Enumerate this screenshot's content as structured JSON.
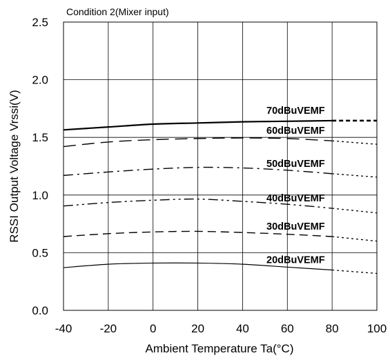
{
  "chart_data": {
    "type": "line",
    "subtitle": "Condition 2(Mixer input)",
    "xlabel": "Ambient Temperature Ta(°C)",
    "ylabel": "RSSI Output Voltage Vrssi(V)",
    "xlim": [
      -40,
      100
    ],
    "ylim": [
      0,
      2.5
    ],
    "xticks": [
      -40,
      -20,
      0,
      20,
      40,
      60,
      80,
      100
    ],
    "yticks": [
      0.0,
      0.5,
      1.0,
      1.5,
      2.0,
      2.5
    ],
    "xtick_labels": [
      "-40",
      "-20",
      "0",
      "20",
      "40",
      "60",
      "80",
      "100"
    ],
    "ytick_labels": [
      "0.0",
      "0.5",
      "1.0",
      "1.5",
      "2.0",
      "2.5"
    ],
    "grid": true,
    "legend": "inline labels",
    "series": [
      {
        "name": "70dBuVEMF",
        "dash": "solid-bold",
        "points": [
          [
            -40,
            1.565
          ],
          [
            -20,
            1.59
          ],
          [
            0,
            1.615
          ],
          [
            20,
            1.625
          ],
          [
            40,
            1.635
          ],
          [
            60,
            1.64
          ],
          [
            80,
            1.645
          ]
        ],
        "extrapolated": [
          [
            80,
            1.645
          ],
          [
            100,
            1.645
          ]
        ]
      },
      {
        "name": "60dBuVEMF",
        "dash": "long-dash",
        "points": [
          [
            -40,
            1.42
          ],
          [
            -20,
            1.46
          ],
          [
            0,
            1.48
          ],
          [
            20,
            1.49
          ],
          [
            40,
            1.495
          ],
          [
            60,
            1.49
          ],
          [
            80,
            1.47
          ]
        ],
        "extrapolated": [
          [
            80,
            1.47
          ],
          [
            100,
            1.44
          ]
        ]
      },
      {
        "name": "50dBuVEMF",
        "dash": "dash-dot",
        "points": [
          [
            -40,
            1.17
          ],
          [
            -20,
            1.2
          ],
          [
            0,
            1.225
          ],
          [
            20,
            1.24
          ],
          [
            40,
            1.235
          ],
          [
            60,
            1.215
          ],
          [
            80,
            1.185
          ]
        ],
        "extrapolated": [
          [
            80,
            1.185
          ],
          [
            100,
            1.155
          ]
        ]
      },
      {
        "name": "40dBuVEMF",
        "dash": "dash-dot-dot",
        "points": [
          [
            -40,
            0.905
          ],
          [
            -20,
            0.935
          ],
          [
            0,
            0.955
          ],
          [
            20,
            0.965
          ],
          [
            40,
            0.945
          ],
          [
            60,
            0.92
          ],
          [
            80,
            0.885
          ]
        ],
        "extrapolated": [
          [
            80,
            0.885
          ],
          [
            100,
            0.845
          ]
        ]
      },
      {
        "name": "30dBuVEMF",
        "dash": "dash",
        "points": [
          [
            -40,
            0.64
          ],
          [
            -20,
            0.665
          ],
          [
            0,
            0.68
          ],
          [
            20,
            0.685
          ],
          [
            40,
            0.675
          ],
          [
            60,
            0.66
          ],
          [
            80,
            0.64
          ]
        ],
        "extrapolated": [
          [
            80,
            0.64
          ],
          [
            100,
            0.6
          ]
        ]
      },
      {
        "name": "20dBuVEMF",
        "dash": "solid",
        "points": [
          [
            -40,
            0.37
          ],
          [
            -20,
            0.4
          ],
          [
            0,
            0.41
          ],
          [
            20,
            0.41
          ],
          [
            40,
            0.4
          ],
          [
            60,
            0.375
          ],
          [
            80,
            0.35
          ]
        ],
        "extrapolated": [
          [
            80,
            0.35
          ],
          [
            100,
            0.32
          ]
        ]
      }
    ]
  }
}
